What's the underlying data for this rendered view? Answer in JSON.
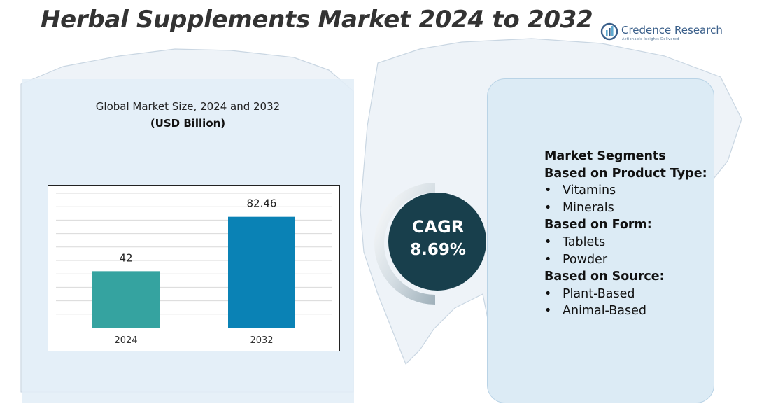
{
  "header": {
    "title": "Herbal Supplements Market 2024 to 2032",
    "logo_name": "Credence Research",
    "logo_tagline": "Actionable Insights Delivered"
  },
  "chart_panel": {
    "heading": "Global Market Size, 2024 and 2032",
    "unit": "(USD Billion)"
  },
  "chart_data": {
    "type": "bar",
    "categories": [
      "2024",
      "2032"
    ],
    "values": [
      42,
      82.46
    ],
    "value_labels": [
      "42",
      "82.46"
    ],
    "title": "Global Market Size, 2024 and 2032",
    "ylabel": "(USD Billion)",
    "xlabel": "",
    "ylim": [
      0,
      100
    ],
    "grid": true,
    "colors": [
      "#35a3a0",
      "#0a82b5"
    ]
  },
  "cagr": {
    "label": "CAGR",
    "value": "8.69%"
  },
  "segments": {
    "title": "Market Segments",
    "groups": [
      {
        "heading": "Based on Product Type:",
        "items": [
          "Vitamins",
          "Minerals"
        ]
      },
      {
        "heading": "Based on Form:",
        "items": [
          "Tablets",
          "Powder"
        ]
      },
      {
        "heading": "Based on Source:",
        "items": [
          "Plant-Based",
          "Animal-Based"
        ]
      }
    ]
  },
  "colors": {
    "panel_bg": "#e2eef7",
    "cagr_circle": "#183f4c",
    "bar_2024": "#35a3a0",
    "bar_2032": "#0a82b5",
    "title_text": "#333333",
    "brand": "#3a5f8a"
  }
}
